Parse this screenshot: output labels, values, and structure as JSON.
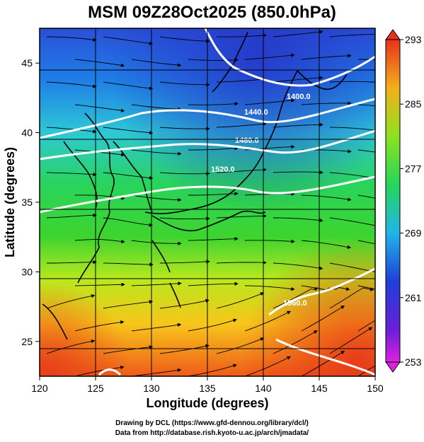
{
  "title": "MSM 09Z28Oct2025 (850.0hPa)",
  "x_axis": {
    "label": "Longitude (degrees)",
    "range": [
      120,
      150
    ],
    "ticks": [
      "120",
      "125",
      "130",
      "135",
      "140",
      "145",
      "150"
    ]
  },
  "y_axis": {
    "label": "Latitude  (degrees)",
    "range": [
      22.5,
      47.5
    ],
    "ticks": [
      "25",
      "30",
      "35",
      "40",
      "45"
    ]
  },
  "colorbar": {
    "min_label": "253",
    "max_label": "293",
    "ticks": [
      "293",
      "285",
      "277",
      "269",
      "261",
      "253"
    ],
    "range": [
      253,
      293
    ]
  },
  "contour_labels": [
    "1400.0",
    "1440.0",
    "1480.0",
    "1520.0",
    "1560.0"
  ],
  "credits": {
    "line1": "Drawing by DCL (https://www.gfd-dennou.org/library/dcl/)",
    "line2": "Data from http://database.rish.kyoto-u.ac.jp/arch/jmadata/"
  },
  "colors": {
    "cold": "#1f3fd0",
    "cool": "#29c6d8",
    "mid": "#23d43c",
    "warm_mid": "#b6e61c",
    "warm": "#f7a21a",
    "hot": "#ec3a1c",
    "contour": "#ffffff",
    "coast": "#000000"
  }
}
